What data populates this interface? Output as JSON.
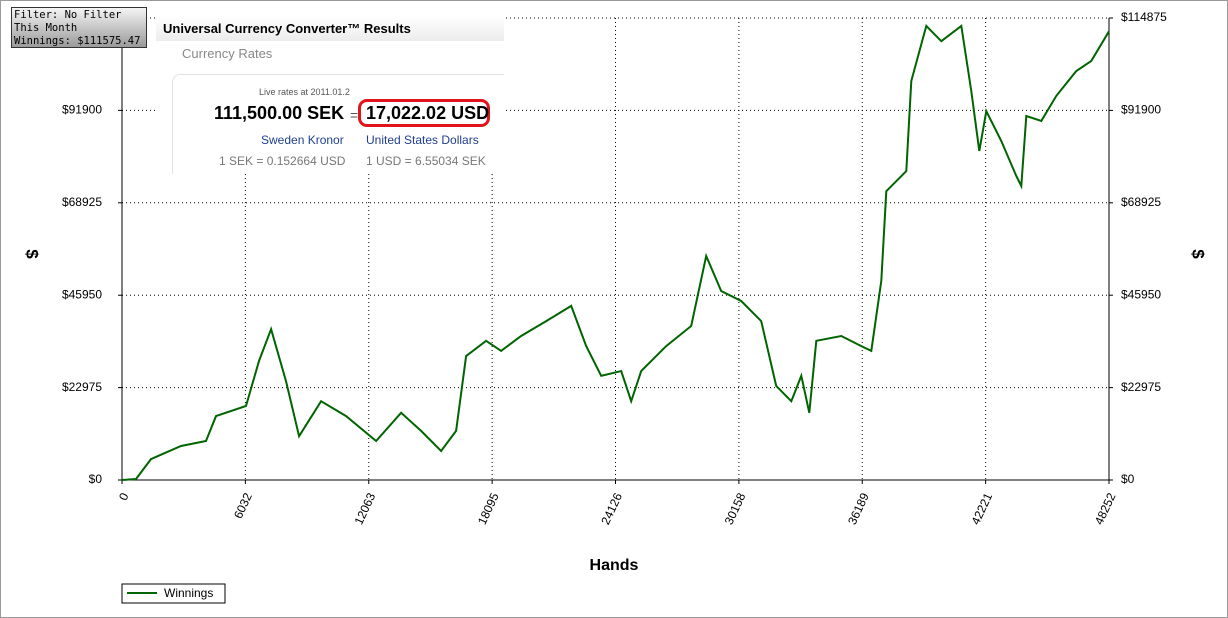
{
  "filter_box": {
    "lines": [
      "Filter: No Filter",
      "This Month",
      "Winnings: $111575.47"
    ]
  },
  "converter": {
    "title": "Universal Currency Converter™ Results",
    "subtitle": "Currency Rates",
    "live": "Live rates at 2011.01.2",
    "from_amount": "111,500.00 SEK",
    "equals": "=",
    "to_amount": "17,022.02 USD",
    "from_name": "Sweden Kronor",
    "to_name": "United States Dollars",
    "from_rate": "1 SEK = 0.152664 USD",
    "to_rate": "1 USD = 6.55034 SEK"
  },
  "chart_data": {
    "type": "line",
    "x_label": "Hands",
    "y_label": "$",
    "x": [
      0,
      684,
      1418,
      2884,
      4107,
      4596,
      6064,
      6700,
      7287,
      8020,
      8656,
      9732,
      10955,
      12422,
      13644,
      14623,
      15601,
      16334,
      16823,
      17802,
      18535,
      19513,
      20736,
      21959,
      22693,
      23426,
      24404,
      24893,
      25382,
      26605,
      27827,
      28561,
      29294,
      30272,
      31250,
      31984,
      32718,
      33207,
      33598,
      33941,
      35163,
      36141,
      36630,
      37119,
      37364,
      38342,
      38587,
      39320,
      40054,
      41032,
      41521,
      41912,
      42254,
      42988,
      43721,
      43966,
      44210,
      44944,
      45677,
      46655,
      47389,
      48252
    ],
    "series": [
      {
        "name": "Winnings",
        "color": "#006400",
        "values": [
          0,
          250,
          5200,
          8450,
          9700,
          15900,
          18400,
          29600,
          37500,
          24600,
          10900,
          19600,
          15900,
          9700,
          16700,
          12200,
          7200,
          12200,
          30800,
          34600,
          32100,
          35800,
          39500,
          43300,
          33300,
          25900,
          27100,
          19600,
          27100,
          33300,
          38300,
          55700,
          47000,
          44500,
          39500,
          23400,
          19600,
          25900,
          16700,
          34600,
          35800,
          33300,
          32100,
          49500,
          71800,
          76800,
          99200,
          112900,
          109100,
          112900,
          96700,
          81800,
          91700,
          84300,
          75600,
          73100,
          90500,
          89300,
          95500,
          101700,
          104200,
          111575
        ]
      }
    ],
    "xlim": [
      0,
      48252
    ],
    "xticks": [
      0,
      6032,
      12063,
      18095,
      24126,
      30158,
      36189,
      42221,
      48252
    ],
    "ylim": [
      0,
      114875
    ],
    "yticks": [
      {
        "value": 0,
        "label": "$0"
      },
      {
        "value": 22975,
        "label": "$22975"
      },
      {
        "value": 45950,
        "label": "$45950"
      },
      {
        "value": 68925,
        "label": "$68925"
      },
      {
        "value": 91900,
        "label": "$91900"
      },
      {
        "value": 114875,
        "label": "$114875"
      }
    ],
    "grid": true
  }
}
